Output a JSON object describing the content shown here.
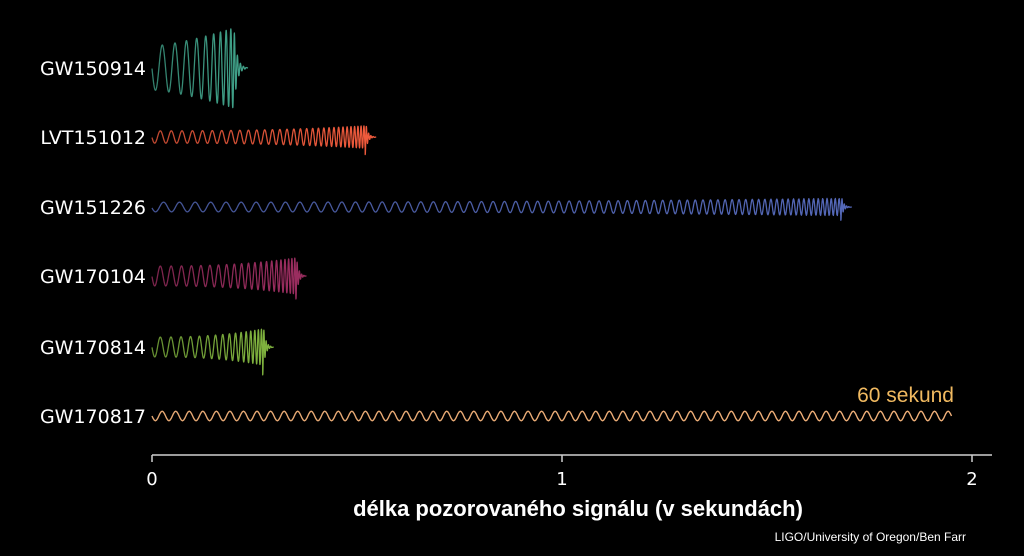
{
  "chart_data": {
    "type": "line",
    "xlabel": "délka pozorovaného signálu (v sekundách)",
    "xlim": [
      0,
      2
    ],
    "xticks": [
      {
        "value": 0,
        "label": "0"
      },
      {
        "value": 1,
        "label": "1"
      },
      {
        "value": 2,
        "label": "2"
      }
    ],
    "series": [
      {
        "name": "GW150914",
        "duration": 0.2,
        "color": "#3f9f87",
        "amplitude": 1.0,
        "chirp": "strong"
      },
      {
        "name": "LVT151012",
        "duration": 0.52,
        "color": "#ef5a3c",
        "amplitude": 0.28,
        "chirp": "medium"
      },
      {
        "name": "GW151226",
        "duration": 1.68,
        "color": "#5468b8",
        "amplitude": 0.22,
        "chirp": "long"
      },
      {
        "name": "GW170104",
        "duration": 0.35,
        "color": "#9a2d5f",
        "amplitude": 0.45,
        "chirp": "medium"
      },
      {
        "name": "GW170814",
        "duration": 0.27,
        "color": "#7fb23e",
        "amplitude": 0.45,
        "chirp": "medium"
      },
      {
        "name": "GW170817",
        "duration": 60,
        "color": "#f0b079",
        "amplitude": 0.12,
        "chirp": "none"
      }
    ],
    "annotation": {
      "text": "60 sekund",
      "series": "GW170817"
    }
  },
  "credit": "LIGO/University of Oregon/Ben Farr"
}
